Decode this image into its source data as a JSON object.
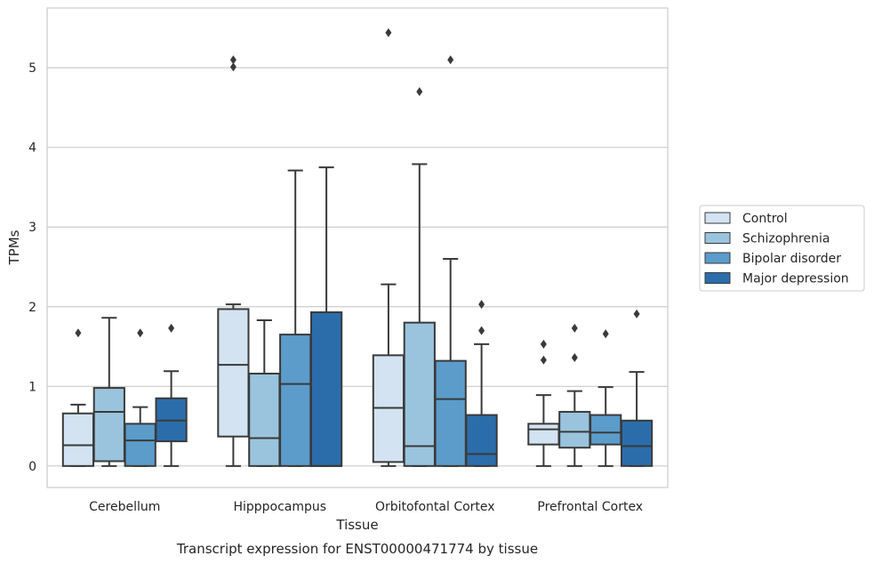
{
  "chart_data": {
    "type": "box",
    "title": "Transcript expression for ENST00000471774 by tissue",
    "xlabel": "Tissue",
    "ylabel": "TPMs",
    "ylim": [
      -0.27,
      5.75
    ],
    "yticks": [
      0,
      1,
      2,
      3,
      4,
      5
    ],
    "grid": "horizontal",
    "legend_position": "right",
    "categories": [
      "Cerebellum",
      "Hipppocampus",
      "Orbitofontal Cortex",
      "Prefrontal Cortex"
    ],
    "series": [
      {
        "name": "Control",
        "color": "#d3e3f2",
        "boxes": [
          {
            "whislo": 0,
            "q1": 0,
            "med": 0.26,
            "q3": 0.66,
            "whishi": 0.77,
            "fliers": [
              1.67
            ]
          },
          {
            "whislo": 0,
            "q1": 0.37,
            "med": 1.27,
            "q3": 1.97,
            "whishi": 2.03,
            "fliers": [
              5.01,
              5.1
            ]
          },
          {
            "whislo": 0,
            "q1": 0.05,
            "med": 0.73,
            "q3": 1.39,
            "whishi": 2.28,
            "fliers": [
              5.44
            ]
          },
          {
            "whislo": 0,
            "q1": 0.27,
            "med": 0.46,
            "q3": 0.53,
            "whishi": 0.89,
            "fliers": [
              1.33,
              1.53
            ]
          }
        ]
      },
      {
        "name": "Schizophrenia",
        "color": "#9ac4dd",
        "boxes": [
          {
            "whislo": 0,
            "q1": 0.06,
            "med": 0.68,
            "q3": 0.98,
            "whishi": 1.86,
            "fliers": []
          },
          {
            "whislo": 0,
            "q1": 0,
            "med": 0.35,
            "q3": 1.16,
            "whishi": 1.83,
            "fliers": []
          },
          {
            "whislo": 0,
            "q1": 0,
            "med": 0.25,
            "q3": 1.8,
            "whishi": 3.79,
            "fliers": [
              4.7
            ]
          },
          {
            "whislo": 0,
            "q1": 0.23,
            "med": 0.43,
            "q3": 0.68,
            "whishi": 0.94,
            "fliers": [
              1.36,
              1.73
            ]
          }
        ]
      },
      {
        "name": "Bipolar disorder",
        "color": "#5b9ccb",
        "boxes": [
          {
            "whislo": 0,
            "q1": 0,
            "med": 0.32,
            "q3": 0.53,
            "whishi": 0.74,
            "fliers": [
              1.67
            ]
          },
          {
            "whislo": 0,
            "q1": 0,
            "med": 1.03,
            "q3": 1.65,
            "whishi": 3.71,
            "fliers": []
          },
          {
            "whislo": 0,
            "q1": 0,
            "med": 0.84,
            "q3": 1.32,
            "whishi": 2.6,
            "fliers": [
              5.1
            ]
          },
          {
            "whislo": 0,
            "q1": 0.27,
            "med": 0.42,
            "q3": 0.64,
            "whishi": 0.99,
            "fliers": [
              1.66
            ]
          }
        ]
      },
      {
        "name": "Major depression",
        "color": "#2b6dab",
        "boxes": [
          {
            "whislo": 0,
            "q1": 0.31,
            "med": 0.57,
            "q3": 0.85,
            "whishi": 1.19,
            "fliers": [
              1.73
            ]
          },
          {
            "whislo": 0,
            "q1": 0,
            "med": 0,
            "q3": 1.93,
            "whishi": 3.75,
            "fliers": []
          },
          {
            "whislo": 0,
            "q1": 0,
            "med": 0.15,
            "q3": 0.64,
            "whishi": 1.53,
            "fliers": [
              1.7,
              2.03
            ]
          },
          {
            "whislo": 0,
            "q1": 0,
            "med": 0.25,
            "q3": 0.57,
            "whishi": 1.18,
            "fliers": [
              1.91
            ]
          }
        ]
      }
    ]
  }
}
